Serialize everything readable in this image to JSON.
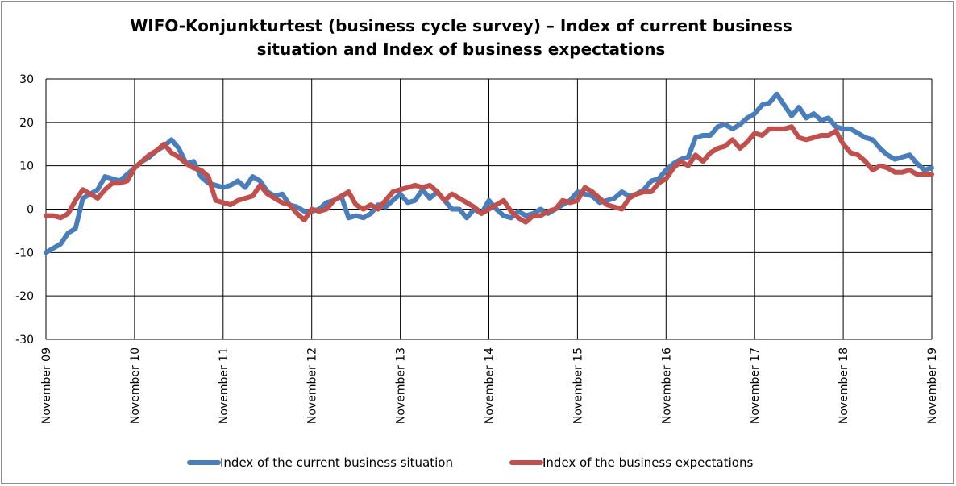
{
  "chart_data": {
    "type": "line",
    "title_line1": "WIFO-Konjunkturtest (business cycle survey) – Index of current business",
    "title_line2": "situation and Index of business expectations",
    "x_start": "November 09",
    "x_end": "November 19",
    "x_ticks": [
      "November 09",
      "November 10",
      "November 11",
      "November 12",
      "November 13",
      "November 14",
      "November 15",
      "November 16",
      "November 17",
      "November 18",
      "November 19"
    ],
    "ylim": [
      -30,
      30
    ],
    "y_ticks": [
      30,
      20,
      10,
      0,
      -10,
      -20,
      -30
    ],
    "grid": true,
    "legend_position": "bottom",
    "series": [
      {
        "name": "Index of the current business situation",
        "color": "#4a7ebb",
        "values": [
          -10,
          -9,
          -8,
          -5.5,
          -4.5,
          2.5,
          3.5,
          4.5,
          7.5,
          7,
          6.5,
          8,
          9.5,
          11,
          12,
          13.5,
          14.5,
          16,
          14,
          10.5,
          11,
          7.5,
          6,
          5.5,
          5,
          5.5,
          6.5,
          5,
          7.5,
          6.5,
          4,
          3,
          3.5,
          1,
          0.5,
          -0.5,
          -0.5,
          0,
          1.5,
          2,
          3,
          -2,
          -1.5,
          -2,
          -1,
          1,
          0.5,
          2,
          3.5,
          1.5,
          2,
          4.5,
          2.5,
          4,
          2,
          0,
          0,
          -2,
          0,
          -1,
          2,
          0,
          -1.5,
          -2,
          -0.5,
          -1.5,
          -1,
          0,
          -1,
          0,
          1,
          2,
          4,
          3.5,
          3,
          1.5,
          2,
          2.5,
          4,
          3,
          3.5,
          4.5,
          6.5,
          7,
          9,
          10.5,
          11.5,
          12,
          16.5,
          17,
          17,
          19,
          19.5,
          18.5,
          19.5,
          21,
          22,
          24,
          24.5,
          26.5,
          24,
          21.5,
          23.5,
          21,
          22,
          20.5,
          21,
          19,
          18.5,
          18.5,
          17.5,
          16.5,
          16,
          14,
          12.5,
          11.5,
          12,
          12.5,
          10.5,
          9,
          9.5
        ]
      },
      {
        "name": "Index of the business expectations",
        "color": "#c0504d",
        "values": [
          -1.5,
          -1.5,
          -2,
          -1,
          2,
          4.5,
          3.5,
          2.5,
          4.5,
          6,
          6,
          6.5,
          9.5,
          11,
          12.5,
          13.5,
          15,
          13,
          12,
          10.5,
          9.5,
          9,
          7.5,
          2,
          1.5,
          1,
          2,
          2.5,
          3,
          5.5,
          3.5,
          2.5,
          1.5,
          1,
          -1,
          -2.5,
          0,
          -0.5,
          0,
          2,
          3,
          4,
          1,
          0,
          1,
          0,
          2,
          4,
          4.5,
          5,
          5.5,
          5,
          5.5,
          4,
          2,
          3.5,
          2.5,
          1.5,
          0.5,
          -1,
          0,
          1,
          2,
          -0.5,
          -2,
          -3,
          -1.5,
          -1.5,
          -0.5,
          0,
          2,
          1.5,
          2,
          5,
          4,
          2.5,
          1,
          0.5,
          0,
          2.5,
          3.5,
          4,
          4,
          6,
          7,
          9.5,
          11,
          10,
          12.5,
          11,
          13,
          14,
          14.5,
          16,
          14,
          15.5,
          17.5,
          17,
          18.5,
          18.5,
          18.5,
          19,
          16.5,
          16,
          16.5,
          17,
          17,
          18,
          15,
          13,
          12.5,
          11,
          9,
          10,
          9.5,
          8.5,
          8.5,
          9,
          8,
          8,
          8
        ]
      }
    ]
  }
}
